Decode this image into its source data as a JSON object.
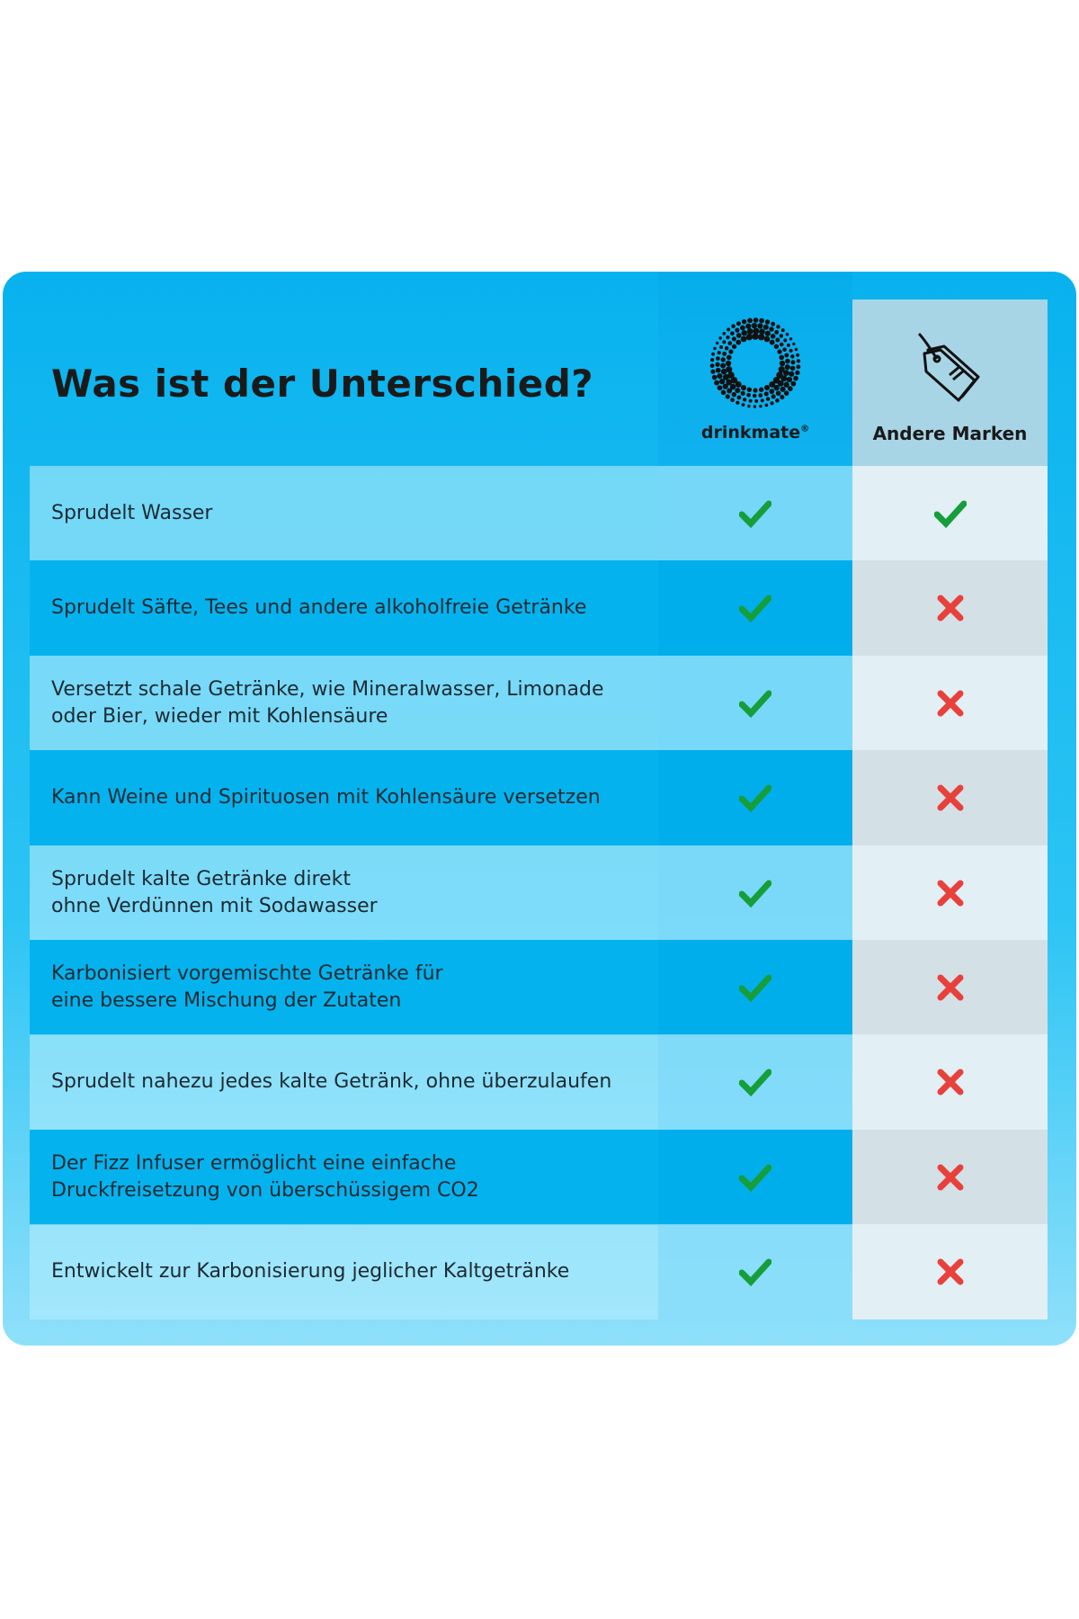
{
  "header": {
    "title": "Was ist der Unterschied?",
    "brand": "drinkmate",
    "brand_mark": "®",
    "other": "Andere Marken"
  },
  "rows": [
    {
      "label": "Sprudelt Wasser",
      "drinkmate": true,
      "other": true
    },
    {
      "label": "Sprudelt Säfte, Tees und andere alkoholfreie Getränke",
      "drinkmate": true,
      "other": false
    },
    {
      "label": "Versetzt schale Getränke, wie Mineralwasser, Limonade\noder Bier, wieder mit Kohlensäure",
      "drinkmate": true,
      "other": false
    },
    {
      "label": "Kann Weine und Spirituosen mit Kohlensäure versetzen",
      "drinkmate": true,
      "other": false
    },
    {
      "label": "Sprudelt kalte Getränke direkt\nohne Verdünnen mit Sodawasser",
      "drinkmate": true,
      "other": false
    },
    {
      "label": "Karbonisiert vorgemischte Getränke für\neine bessere Mischung der Zutaten",
      "drinkmate": true,
      "other": false
    },
    {
      "label": "Sprudelt nahezu jedes kalte Getränk, ohne überzulaufen",
      "drinkmate": true,
      "other": false
    },
    {
      "label": "Der Fizz Infuser ermöglicht eine einfache\nDruckfreisetzung von überschüssigem CO2",
      "drinkmate": true,
      "other": false
    },
    {
      "label": "Entwickelt zur Karbonisierung jeglicher Kaltgetränke",
      "drinkmate": true,
      "other": false
    }
  ]
}
